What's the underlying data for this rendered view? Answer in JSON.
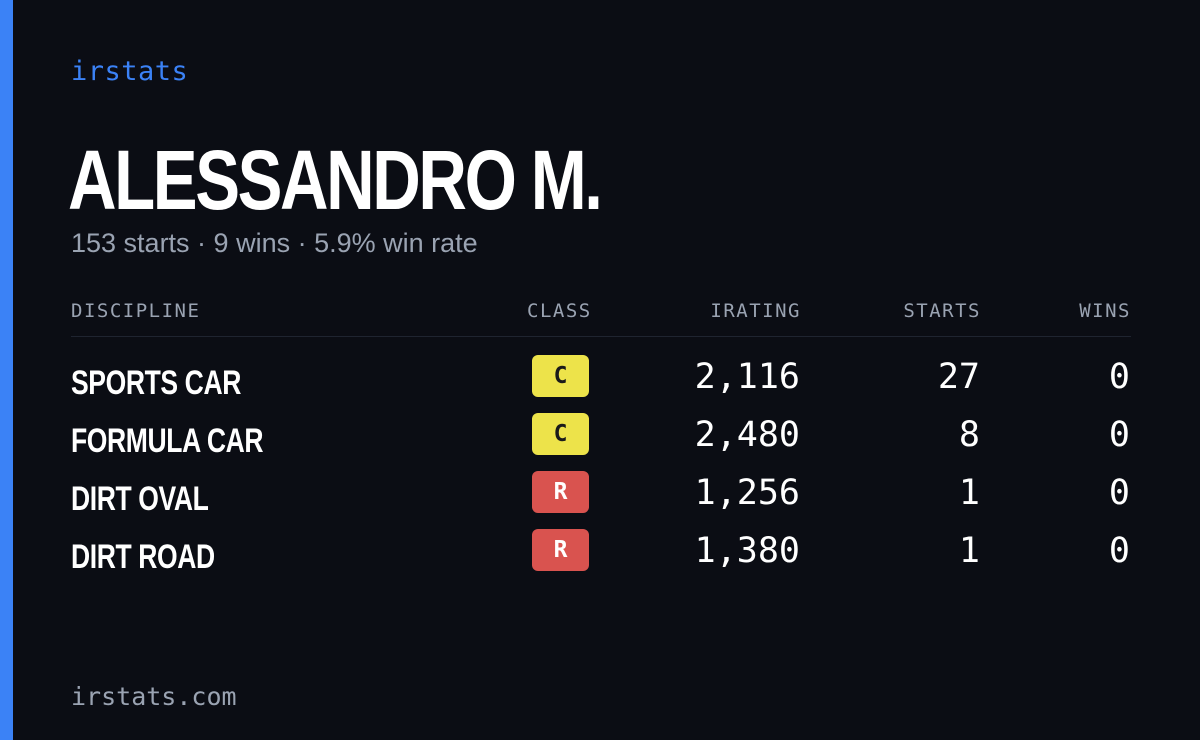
{
  "brand": "irstats",
  "driver": {
    "name": "ALESSANDRO M.",
    "summary": "153 starts · 9 wins · 5.9% win rate"
  },
  "table": {
    "headers": {
      "discipline": "DISCIPLINE",
      "class": "CLASS",
      "irating": "IRATING",
      "starts": "STARTS",
      "wins": "WINS"
    },
    "rows": [
      {
        "discipline": "SPORTS CAR",
        "class": "C",
        "class_color": "#ede34a",
        "class_text_color": "#1a1a1a",
        "irating": "2,116",
        "starts": "27",
        "wins": "0"
      },
      {
        "discipline": "FORMULA CAR",
        "class": "C",
        "class_color": "#ede34a",
        "class_text_color": "#1a1a1a",
        "irating": "2,480",
        "starts": "8",
        "wins": "0"
      },
      {
        "discipline": "DIRT OVAL",
        "class": "R",
        "class_color": "#d9534f",
        "class_text_color": "#ffffff",
        "irating": "1,256",
        "starts": "1",
        "wins": "0"
      },
      {
        "discipline": "DIRT ROAD",
        "class": "R",
        "class_color": "#d9534f",
        "class_text_color": "#ffffff",
        "irating": "1,380",
        "starts": "1",
        "wins": "0"
      }
    ]
  },
  "footer": "irstats.com",
  "colors": {
    "background": "#0b0d14",
    "accent": "#3b82f6",
    "muted": "#9aa3b2"
  }
}
